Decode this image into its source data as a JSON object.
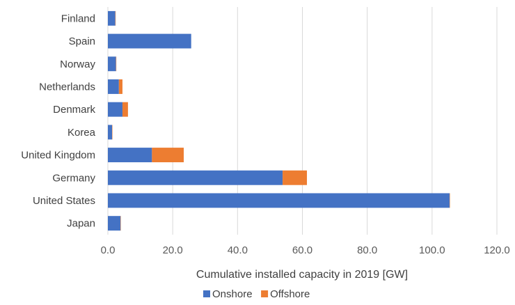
{
  "chart_data": {
    "type": "bar",
    "orientation": "horizontal",
    "stacked": true,
    "categories": [
      "Finland",
      "Spain",
      "Norway",
      "Netherlands",
      "Denmark",
      "Korea",
      "United Kingdom",
      "Germany",
      "United States",
      "Japan"
    ],
    "series": [
      {
        "name": "Onshore",
        "color": "#4472C4",
        "values": [
          2.3,
          25.7,
          2.5,
          3.4,
          4.5,
          1.3,
          13.6,
          53.9,
          105.4,
          3.9
        ]
      },
      {
        "name": "Offshore",
        "color": "#ED7D31",
        "values": [
          0.1,
          0.0,
          0.1,
          1.1,
          1.7,
          0.1,
          9.8,
          7.5,
          0.1,
          0.1
        ]
      }
    ],
    "xlabel": "Cumulative installed capacity in 2019 [GW]",
    "ylabel": "",
    "xlim": [
      0,
      120
    ],
    "xticks": [
      "0.0",
      "20.0",
      "40.0",
      "60.0",
      "80.0",
      "100.0",
      "120.0"
    ],
    "grid": "vertical",
    "legend": "bottom"
  }
}
